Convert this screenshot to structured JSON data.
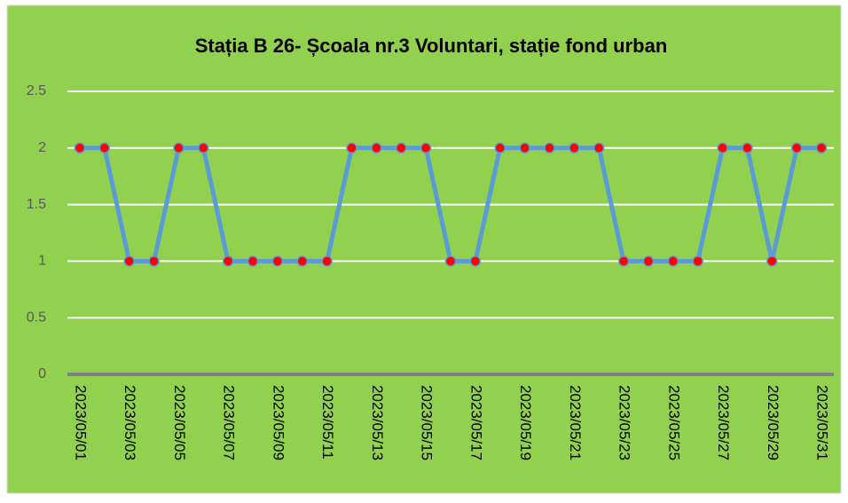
{
  "chart_data": {
    "type": "line",
    "title": "Stația B 26- Școala  nr.3 Voluntari, stație fond urban",
    "categories": [
      "2023/05/01",
      null,
      "2023/05/03",
      null,
      "2023/05/05",
      null,
      "2023/05/07",
      null,
      "2023/05/09",
      null,
      "2023/05/11",
      null,
      "2023/05/13",
      null,
      "2023/05/15",
      null,
      "2023/05/17",
      null,
      "2023/05/19",
      null,
      "2023/05/21",
      null,
      "2023/05/23",
      null,
      "2023/05/25",
      null,
      "2023/05/27",
      null,
      "2023/05/29",
      null,
      "2023/05/31"
    ],
    "series": [
      {
        "color": "#5b9bd5",
        "marker_color": "#ff0000",
        "values": [
          2,
          2,
          1,
          1,
          2,
          2,
          1,
          1,
          1,
          1,
          1,
          2,
          2,
          2,
          2,
          1,
          1,
          2,
          2,
          2,
          2,
          2,
          1,
          1,
          1,
          1,
          2,
          2,
          1,
          2,
          2
        ]
      }
    ],
    "ylim": [
      0,
      2.5
    ],
    "yticks": [
      0,
      0.5,
      1,
      1.5,
      2,
      2.5
    ],
    "grid": true,
    "background": "#92d050"
  }
}
